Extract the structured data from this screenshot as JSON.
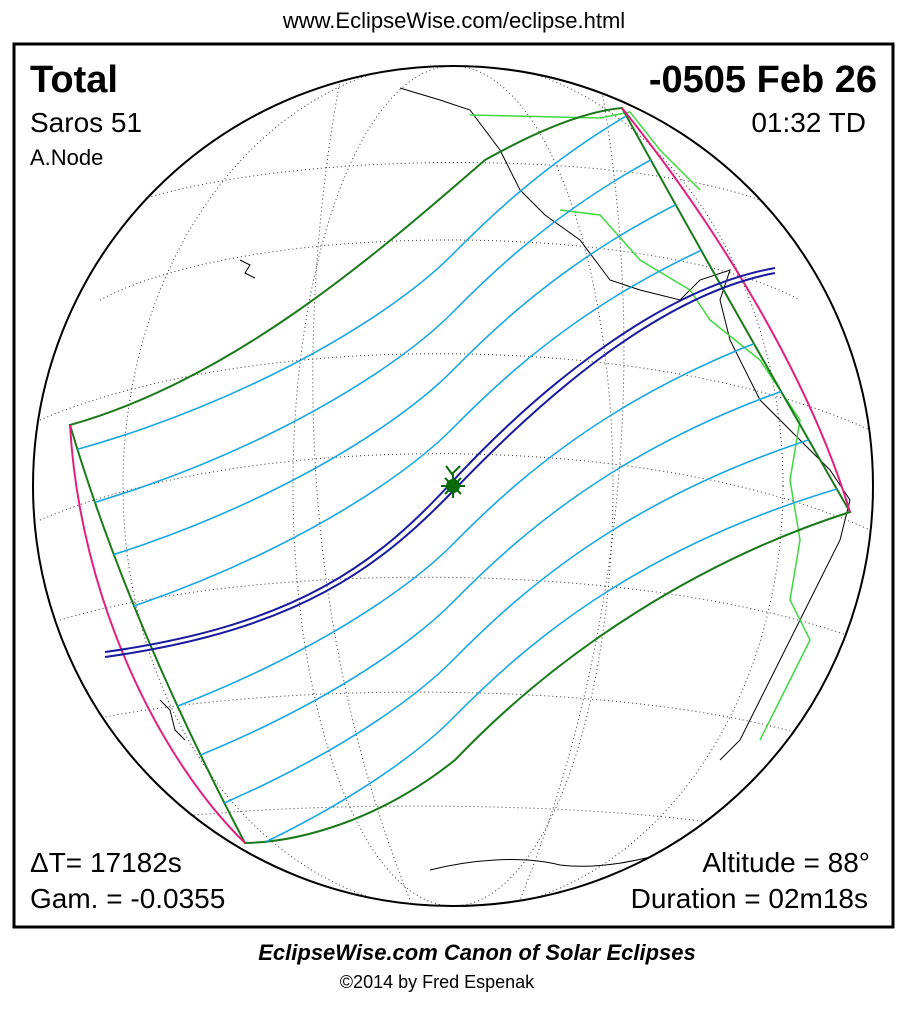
{
  "header": {
    "url": "www.EclipseWise.com/eclipse.html"
  },
  "eclipse": {
    "type": "Total",
    "saros": "Saros  51",
    "node": "A.Node",
    "date": "-0505 Feb 26",
    "time": "01:32 TD",
    "delta_t": "ΔT=  17182s",
    "gamma": "Gam. = -0.0355",
    "altitude": "Altitude = 88°",
    "duration": "Duration = 02m18s"
  },
  "footer": {
    "title": "EclipseWise.com Canon of Solar Eclipses",
    "copyright": "©2014 by Fred Espenak"
  }
}
